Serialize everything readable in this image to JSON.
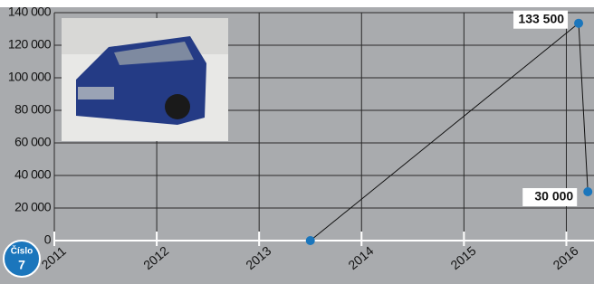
{
  "chart_data": {
    "type": "line",
    "x": [
      2013.5,
      2016.12,
      2016.21
    ],
    "series": [
      {
        "color": "#1b76bc",
        "values": [
          0,
          133500,
          30000
        ],
        "value_labels": [
          null,
          "133 500",
          "30 000"
        ]
      }
    ],
    "xlim": [
      2011,
      2016.27
    ],
    "xticks": [
      2011,
      2012,
      2013,
      2014,
      2015,
      2016
    ],
    "ylim": [
      0,
      140000
    ],
    "yticks": [
      0,
      {
        "value": 20000,
        "label": "20 000"
      },
      {
        "value": 40000,
        "label": "40 000"
      },
      {
        "value": 60000,
        "label": "60 000"
      },
      {
        "value": 80000,
        "label": "80 000"
      },
      {
        "value": 100000,
        "label": "100 000"
      },
      {
        "value": 120000,
        "label": "120 000"
      },
      {
        "value": 140000,
        "label": "140 000"
      }
    ],
    "grid": true
  },
  "badge": {
    "label": "Číslo",
    "number": "7"
  }
}
